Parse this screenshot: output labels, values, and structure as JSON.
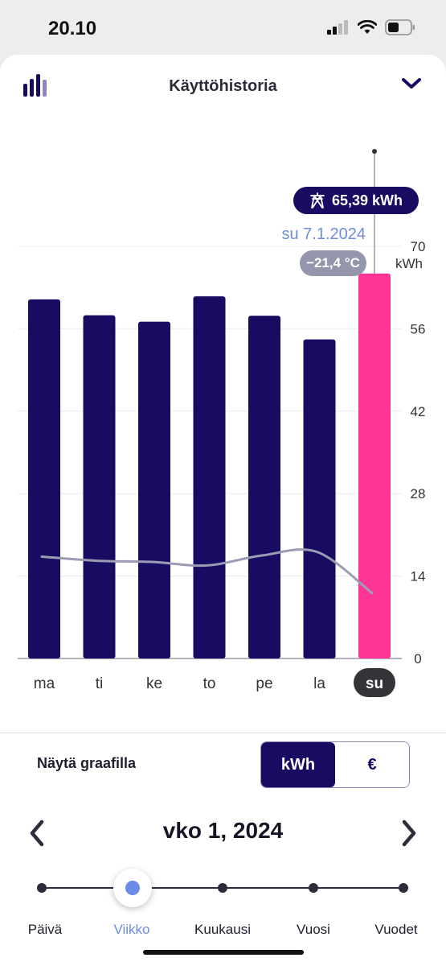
{
  "status_bar": {
    "time": "20.10"
  },
  "header": {
    "title": "Käyttöhistoria"
  },
  "chart_data": {
    "type": "bar",
    "categories": [
      "ma",
      "ti",
      "ke",
      "to",
      "pe",
      "la",
      "su"
    ],
    "series": [
      {
        "values": [
          61,
          58.3,
          57.2,
          61.5,
          58.2,
          54.2,
          65.39
        ]
      },
      {
        "values": [
          17.3,
          16.6,
          16.4,
          15.8,
          17.5,
          18.1,
          11.1
        ]
      }
    ],
    "ylabel": "kWh",
    "yticks": [
      0,
      14,
      28,
      42,
      56,
      70
    ],
    "ylim": [
      0,
      70
    ],
    "selected_index": 6,
    "colors": {
      "bar": "#170c62",
      "selected_bar": "#ff3596",
      "line": "#9c9cb4"
    }
  },
  "selection": {
    "energy": "65,39 kWh",
    "date": "su 7.1.2024",
    "temperature": "−21,4 °C"
  },
  "toggle": {
    "label": "Näytä graafilla",
    "options": [
      "kWh",
      "€"
    ],
    "selected": "kWh"
  },
  "period": {
    "title": "vko 1, 2024",
    "options": [
      "Päivä",
      "Viikko",
      "Kuukausi",
      "Vuosi",
      "Vuodet"
    ],
    "selected": "Viikko"
  }
}
